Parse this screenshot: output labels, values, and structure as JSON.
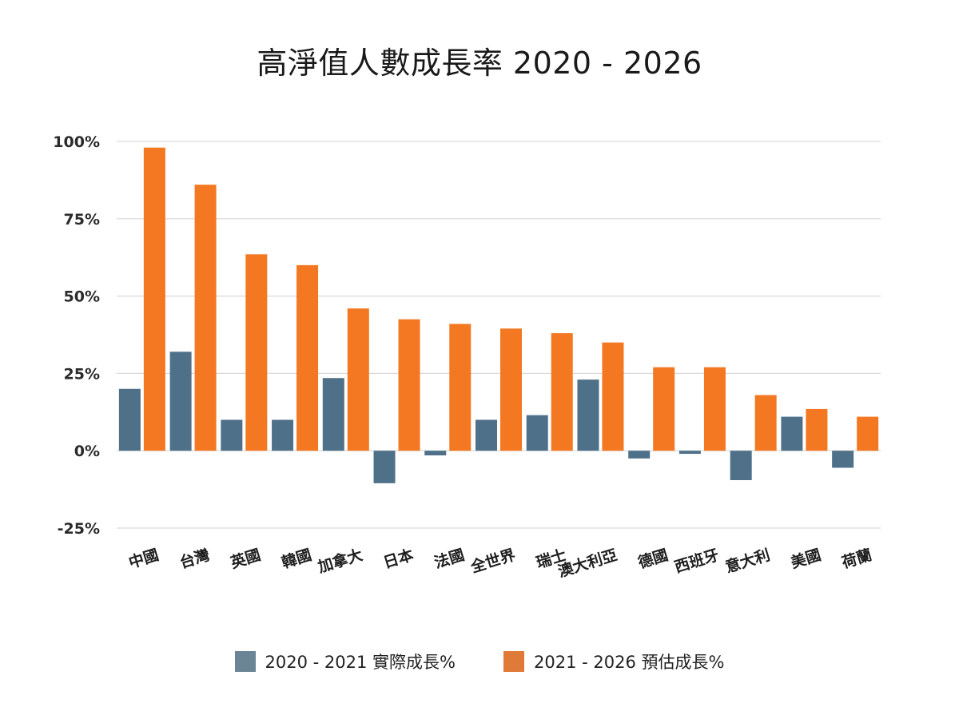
{
  "colors": {
    "series_actual": "#4e7189",
    "series_forecast": "#f47821",
    "legend_actual": "#6c8596",
    "legend_forecast": "#e07a38",
    "grid": "#d9d9d9"
  },
  "chart_data": {
    "type": "bar",
    "title": "高淨值人數成長率 2020 - 2026",
    "categories": [
      "中國",
      "台灣",
      "英國",
      "韓國",
      "加拿大",
      "日本",
      "法國",
      "全世界",
      "瑞士",
      "澳大利亞",
      "德國",
      "西班牙",
      "意大利",
      "美國",
      "荷蘭"
    ],
    "series": [
      {
        "name": "2020 - 2021 實際成長%",
        "values": [
          20,
          32,
          10,
          10,
          23.5,
          -10.5,
          -1.5,
          10,
          11.5,
          23,
          -2.5,
          -1,
          -9.5,
          11,
          -5.5
        ]
      },
      {
        "name": "2021 - 2026 預估成長%",
        "values": [
          98,
          86,
          63.5,
          60,
          46,
          42.5,
          41,
          39.5,
          38,
          35,
          27,
          27,
          18,
          13.5,
          11
        ]
      }
    ],
    "y_ticks": [
      "100%",
      "75%",
      "50%",
      "25%",
      "0%",
      "-25%"
    ],
    "ylim": [
      -25,
      100
    ],
    "grid": true,
    "legend_position": "bottom"
  }
}
